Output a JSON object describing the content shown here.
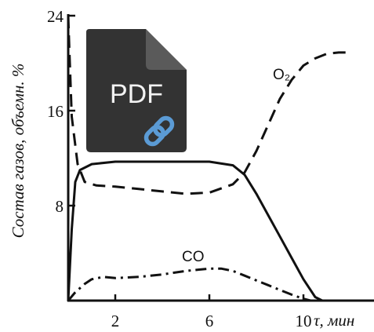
{
  "chart_data": {
    "type": "line",
    "ylabel": "Состав газов, объемн. %",
    "x_tick_labels": [
      "2",
      "6",
      "10"
    ],
    "x_axis_unit_label": "τ, мин",
    "y_tick_labels": [
      "8",
      "16",
      "24"
    ],
    "xlim": [
      0,
      12
    ],
    "ylim": [
      0,
      24
    ],
    "grid": false,
    "series": [
      {
        "name": "O₂",
        "style": "dashed",
        "x": [
          0.0,
          0.05,
          0.15,
          0.4,
          0.7,
          1.2,
          2.0,
          3.0,
          4.0,
          5.0,
          6.0,
          7.0,
          7.5,
          8.0,
          8.5,
          9.0,
          9.5,
          10.0,
          10.5,
          11.0,
          11.5,
          12.0
        ],
        "y": [
          24.0,
          21.0,
          15.5,
          11.5,
          10.0,
          9.7,
          9.6,
          9.4,
          9.2,
          9.0,
          9.1,
          9.8,
          10.8,
          12.6,
          14.8,
          17.0,
          18.6,
          19.8,
          20.4,
          20.8,
          20.9,
          20.9
        ]
      },
      {
        "name": "",
        "style": "solid",
        "x": [
          0.0,
          0.15,
          0.3,
          0.5,
          1.0,
          2.0,
          4.0,
          6.0,
          7.0,
          7.5,
          8.0,
          8.5,
          9.0,
          9.5,
          10.0,
          10.5,
          10.8
        ],
        "y": [
          0.0,
          6.0,
          10.0,
          11.0,
          11.5,
          11.7,
          11.7,
          11.7,
          11.4,
          10.6,
          9.0,
          7.2,
          5.4,
          3.6,
          1.8,
          0.3,
          0.0
        ]
      },
      {
        "name": "CO",
        "style": "dash-dot",
        "x": [
          0.0,
          0.3,
          0.7,
          1.0,
          1.5,
          2.0,
          3.0,
          4.0,
          5.0,
          6.0,
          6.5,
          7.0,
          7.5,
          8.0,
          8.5,
          9.0,
          9.5,
          10.0,
          10.3
        ],
        "y": [
          0.0,
          0.7,
          1.4,
          1.8,
          2.0,
          1.9,
          2.0,
          2.2,
          2.5,
          2.7,
          2.7,
          2.5,
          2.1,
          1.7,
          1.3,
          0.9,
          0.5,
          0.15,
          0.0
        ]
      }
    ],
    "curve_labels": [
      "O₂",
      "CO"
    ]
  },
  "overlay": {
    "badge_text": "PDF",
    "file_color": "#333333",
    "fold_color": "#5a5a5a",
    "link_color": "#5b9bd5"
  }
}
